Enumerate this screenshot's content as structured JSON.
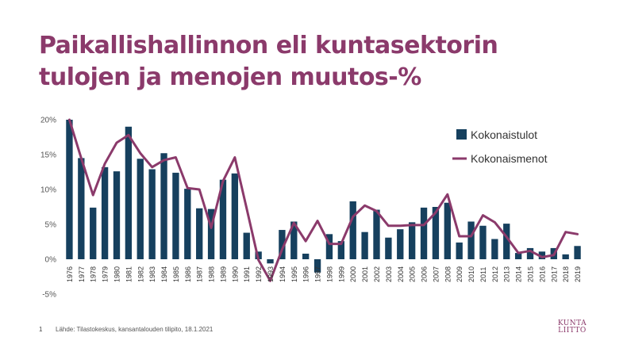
{
  "slide": {
    "title_line1": "Paikallishallinnon eli kuntasektorin",
    "title_line2": "tulojen ja menojen muutos-%",
    "page_number": "1",
    "source": "Lähde: Tilastokeskus, kansantalouden tilipito, 18.1.2021",
    "logo_line1": "KUNTA",
    "logo_line2": "LIITTO"
  },
  "colors": {
    "title": "#8b3a6b",
    "bars": "#16405e",
    "line": "#8b3a6b"
  },
  "chart_data": {
    "type": "bar",
    "title": "",
    "xlabel": "",
    "ylabel": "",
    "ylim": [
      -5,
      20
    ],
    "yticks": [
      -5,
      0,
      5,
      10,
      15,
      20
    ],
    "ytick_labels": [
      "-5%",
      "0%",
      "5%",
      "10%",
      "15%",
      "20%"
    ],
    "grid": false,
    "legend_position": "top-right",
    "categories": [
      "1976",
      "1977",
      "1978",
      "1979",
      "1980",
      "1981",
      "1982",
      "1983",
      "1984",
      "1985",
      "1986",
      "1987",
      "1988",
      "1989",
      "1990",
      "1991",
      "1992",
      "1993",
      "1994",
      "1995",
      "1996",
      "1997",
      "1998",
      "1999",
      "2000",
      "2001",
      "2002",
      "2003",
      "2004",
      "2005",
      "2006",
      "2007",
      "2008",
      "2009",
      "2010",
      "2011",
      "2012",
      "2013",
      "2014",
      "2015",
      "2016",
      "2017",
      "2018",
      "2019"
    ],
    "series": [
      {
        "name": "Kokonaistulot",
        "type": "bar",
        "values": [
          20.0,
          14.5,
          7.4,
          13.2,
          12.6,
          19.0,
          14.4,
          12.9,
          15.2,
          12.4,
          10.1,
          7.3,
          7.2,
          11.4,
          12.3,
          3.8,
          1.1,
          -0.6,
          4.2,
          5.4,
          0.8,
          -1.9,
          3.6,
          2.6,
          8.3,
          3.9,
          7.1,
          3.1,
          4.3,
          5.3,
          7.4,
          7.5,
          8.1,
          2.4,
          5.4,
          4.8,
          2.9,
          5.1,
          0.9,
          1.6,
          1.1,
          1.6,
          0.7,
          1.9
        ]
      },
      {
        "name": "Kokonaismenot",
        "type": "line",
        "values": [
          20.0,
          14.5,
          9.2,
          13.7,
          16.7,
          17.8,
          15.2,
          13.2,
          14.2,
          14.6,
          10.2,
          10.0,
          4.5,
          11.2,
          14.6,
          7.3,
          -0.1,
          -3.1,
          1.4,
          5.2,
          2.6,
          5.5,
          2.2,
          2.2,
          6.1,
          7.7,
          6.9,
          4.8,
          4.8,
          4.9,
          4.9,
          6.7,
          9.3,
          3.3,
          3.3,
          6.3,
          5.3,
          3.2,
          0.9,
          1.2,
          0.3,
          0.6,
          3.9,
          3.6
        ]
      }
    ]
  }
}
